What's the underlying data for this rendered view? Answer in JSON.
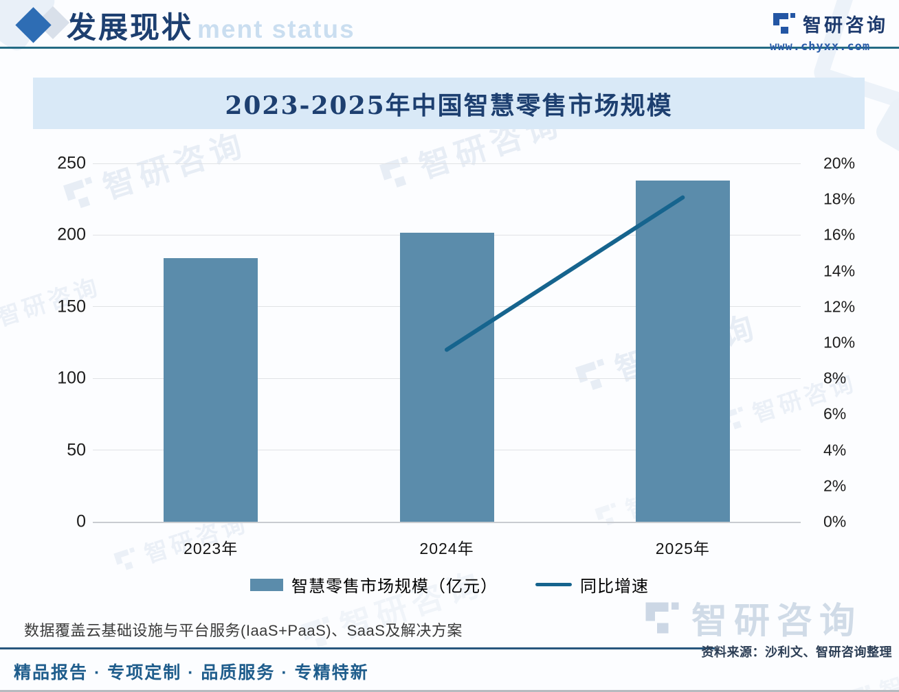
{
  "header": {
    "title": "发展现状",
    "watermark_visible": "ment status"
  },
  "brand": {
    "name": "智研咨询",
    "website": "www.chyxx.com"
  },
  "chart_data": {
    "type": "bar",
    "title": "2023-2025年中国智慧零售市场规模",
    "categories": [
      "2023年",
      "2024年",
      "2025年"
    ],
    "series": [
      {
        "name": "智慧零售市场规模（亿元）",
        "type": "bar",
        "axis": "left",
        "color": "#5b8cab",
        "values": [
          184,
          201.6,
          238.1
        ]
      },
      {
        "name": "同比增速",
        "type": "line",
        "axis": "right",
        "color": "#16648e",
        "values": [
          null,
          9.6,
          18.1
        ]
      }
    ],
    "left_axis": {
      "min": 0,
      "max": 250,
      "ticks": [
        "250",
        "200",
        "150",
        "100",
        "50",
        "0"
      ]
    },
    "right_axis": {
      "min": 0,
      "max": 20,
      "ticks": [
        "20%",
        "18%",
        "16%",
        "14%",
        "12%",
        "10%",
        "8%",
        "6%",
        "4%",
        "2%",
        "0%"
      ]
    },
    "grid": true,
    "legend_position": "bottom"
  },
  "footer": {
    "note": "数据覆盖云基础设施与平台服务(IaaS+PaaS)、SaaS及解决方案",
    "source": "资料来源：沙利文、智研咨询整理",
    "tagline": "精品报告 · 专项定制 · 品质服务 · 专精特新"
  },
  "colors": {
    "banner_bg": "#d9e9f7",
    "navy": "#1d3f70",
    "teal_rule": "#236b84",
    "footer_rule": "#26567d",
    "tagline": "#1f5d8c",
    "link_blue": "#2a5ca8",
    "watermark": "#7fa0c8"
  }
}
